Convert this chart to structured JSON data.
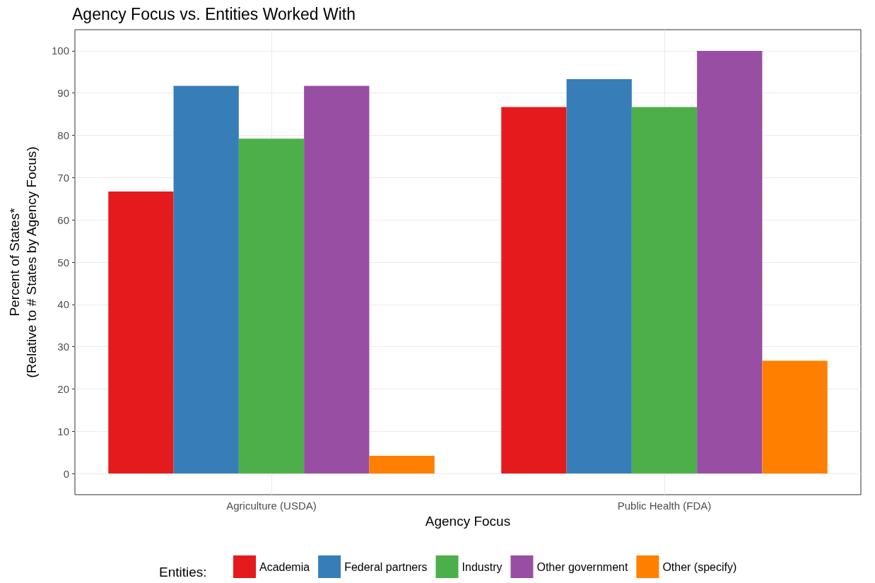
{
  "chart_data": {
    "type": "bar",
    "title": "Agency Focus vs. Entities Worked With",
    "xlabel": "Agency Focus",
    "ylabel": "Percent of States*\n(Relative to # States by Agency Focus)",
    "legend_title": "Entities:",
    "categories": [
      "Agriculture (USDA)",
      "Public Health (FDA)"
    ],
    "series": [
      {
        "name": "Academia",
        "color": "#e41a1c",
        "values": [
          66.7,
          86.7
        ]
      },
      {
        "name": "Federal partners",
        "color": "#377eb8",
        "values": [
          91.7,
          93.3
        ]
      },
      {
        "name": "Industry",
        "color": "#4daf4a",
        "values": [
          79.2,
          86.7
        ]
      },
      {
        "name": "Other government",
        "color": "#984ea3",
        "values": [
          91.7,
          100
        ]
      },
      {
        "name": "Other (specify)",
        "color": "#ff7f00",
        "values": [
          4.2,
          26.7
        ]
      }
    ],
    "ylim": [
      -5,
      105
    ],
    "yticks": [
      0,
      10,
      20,
      30,
      40,
      50,
      60,
      70,
      80,
      90,
      100
    ],
    "grid": true,
    "legend": "bottom"
  }
}
